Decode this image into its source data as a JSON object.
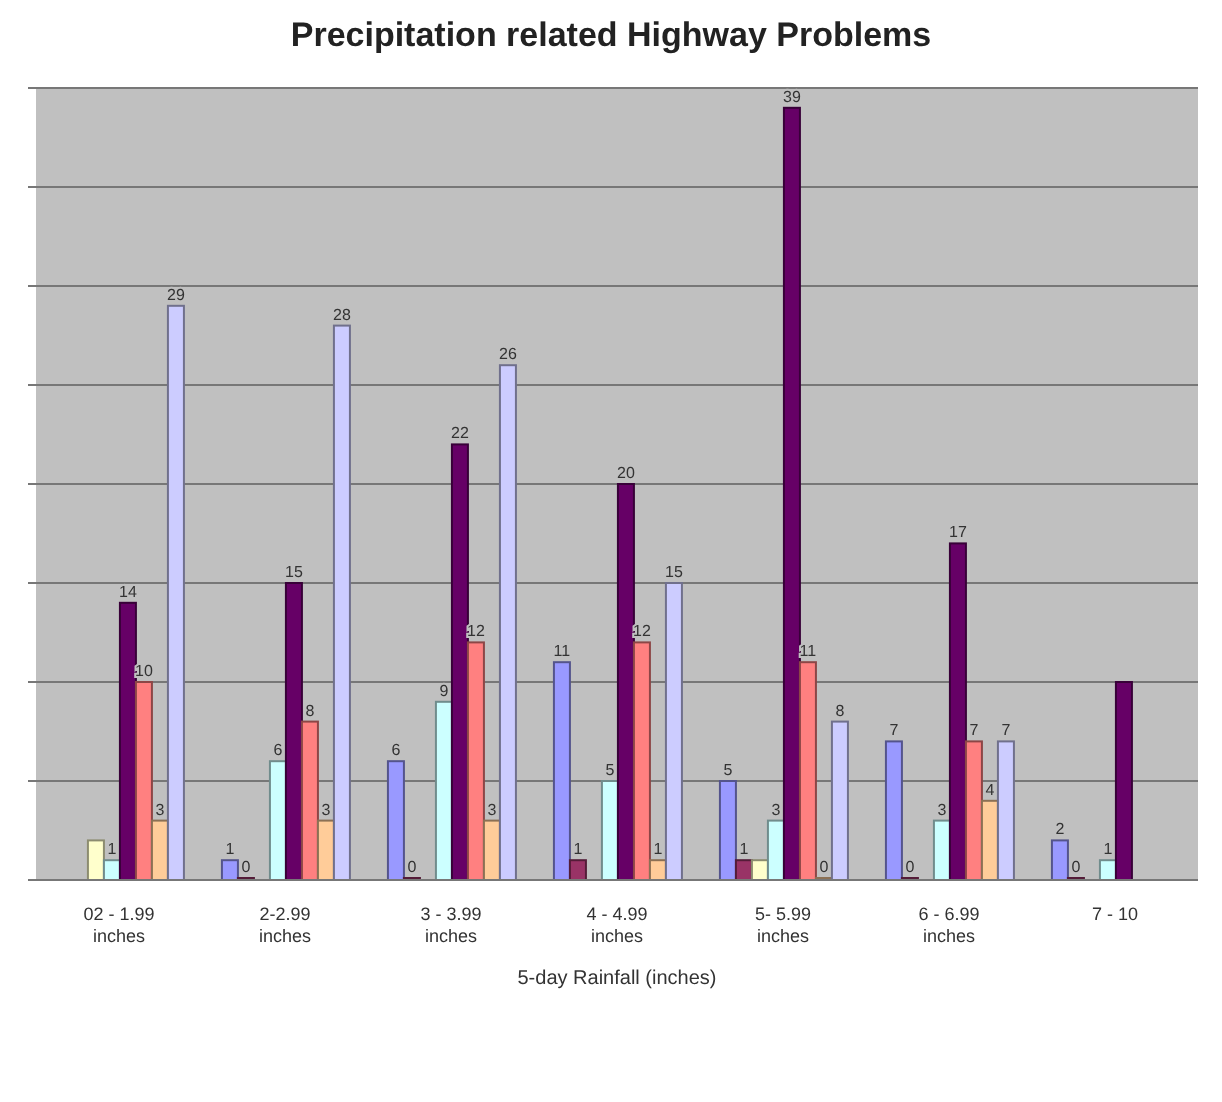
{
  "chart_data": {
    "type": "bar",
    "title": "Precipitation related Highway Problems",
    "xlabel": "5-day Rainfall (inches)",
    "categories": [
      "02 - 1.99 inches",
      "2-2.99 inches",
      "3 - 3.99 inches",
      "4 - 4.99 inches",
      "5- 5.99 inches",
      "6 - 6.99 inches",
      "7 - 10"
    ],
    "ylim": [
      0,
      40
    ],
    "yticks": [
      {
        "value": 0,
        "label": null
      },
      {
        "value": 5,
        "label": null
      },
      {
        "value": 10,
        "label": null
      },
      {
        "value": 15,
        "label": null
      },
      {
        "value": 20,
        "label": null
      },
      {
        "value": 25,
        "label": null
      },
      {
        "value": 30,
        "label": null
      },
      {
        "value": 35,
        "label": null
      },
      {
        "value": 40,
        "label": null
      }
    ],
    "tick_labels": "x",
    "grid": "y",
    "legend": false,
    "series": [
      {
        "color": "#9999ff",
        "values": [
          null,
          1,
          6,
          11,
          5,
          7,
          2
        ],
        "value_labels": [
          null,
          "1",
          "6",
          "11",
          "5",
          "7",
          "2"
        ]
      },
      {
        "color": "#993366",
        "values": [
          null,
          0,
          0,
          1,
          1,
          0,
          0
        ],
        "value_labels": [
          null,
          "0",
          "0",
          "1",
          "1",
          "0",
          "0"
        ]
      },
      {
        "color": "#ffffcc",
        "values": [
          2,
          null,
          null,
          null,
          1,
          null,
          null
        ],
        "value_labels": [
          null,
          null,
          null,
          null,
          null,
          null,
          null
        ]
      },
      {
        "color": "#ccffff",
        "values": [
          1,
          6,
          9,
          5,
          3,
          3,
          1
        ],
        "value_labels": [
          "1",
          "6",
          "9",
          "5",
          "3",
          "3",
          "1"
        ]
      },
      {
        "color": "#660066",
        "values": [
          14,
          15,
          22,
          20,
          39,
          17,
          10
        ],
        "value_labels": [
          "14",
          "15",
          "22",
          "20",
          "39",
          "17",
          null
        ]
      },
      {
        "color": "#ff8080",
        "values": [
          10,
          8,
          12,
          12,
          11,
          7,
          null
        ],
        "value_labels": [
          "10",
          "8",
          "12",
          "12",
          "11",
          "7",
          null
        ]
      },
      {
        "color": "#ffcc99",
        "values": [
          3,
          3,
          3,
          1,
          0,
          4,
          null
        ],
        "value_labels": [
          "3",
          "3",
          "3",
          "1",
          "0",
          "4",
          null
        ]
      },
      {
        "color": "#ccccff",
        "values": [
          29,
          28,
          26,
          15,
          8,
          7,
          null
        ],
        "value_labels": [
          "29",
          "28",
          "26",
          "15",
          "8",
          "7",
          null
        ]
      }
    ]
  }
}
